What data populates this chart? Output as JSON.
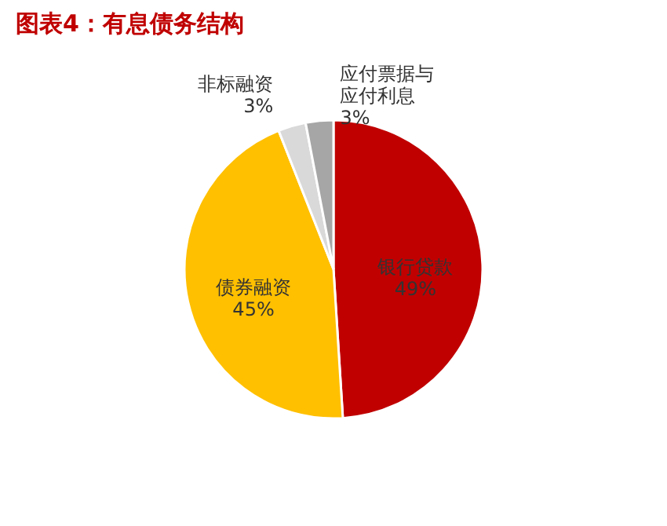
{
  "chart_data": {
    "type": "pie",
    "title": "图表4：有息债务结构",
    "categories": [
      "银行贷款",
      "债券融资",
      "非标融资",
      "应付票据与应付利息"
    ],
    "values": [
      49,
      45,
      3,
      3
    ],
    "value_labels": [
      "49%",
      "45%",
      "3%",
      "3%"
    ],
    "colors": [
      "#c00000",
      "#ffc000",
      "#d9d9d9",
      "#a6a6a6"
    ]
  }
}
